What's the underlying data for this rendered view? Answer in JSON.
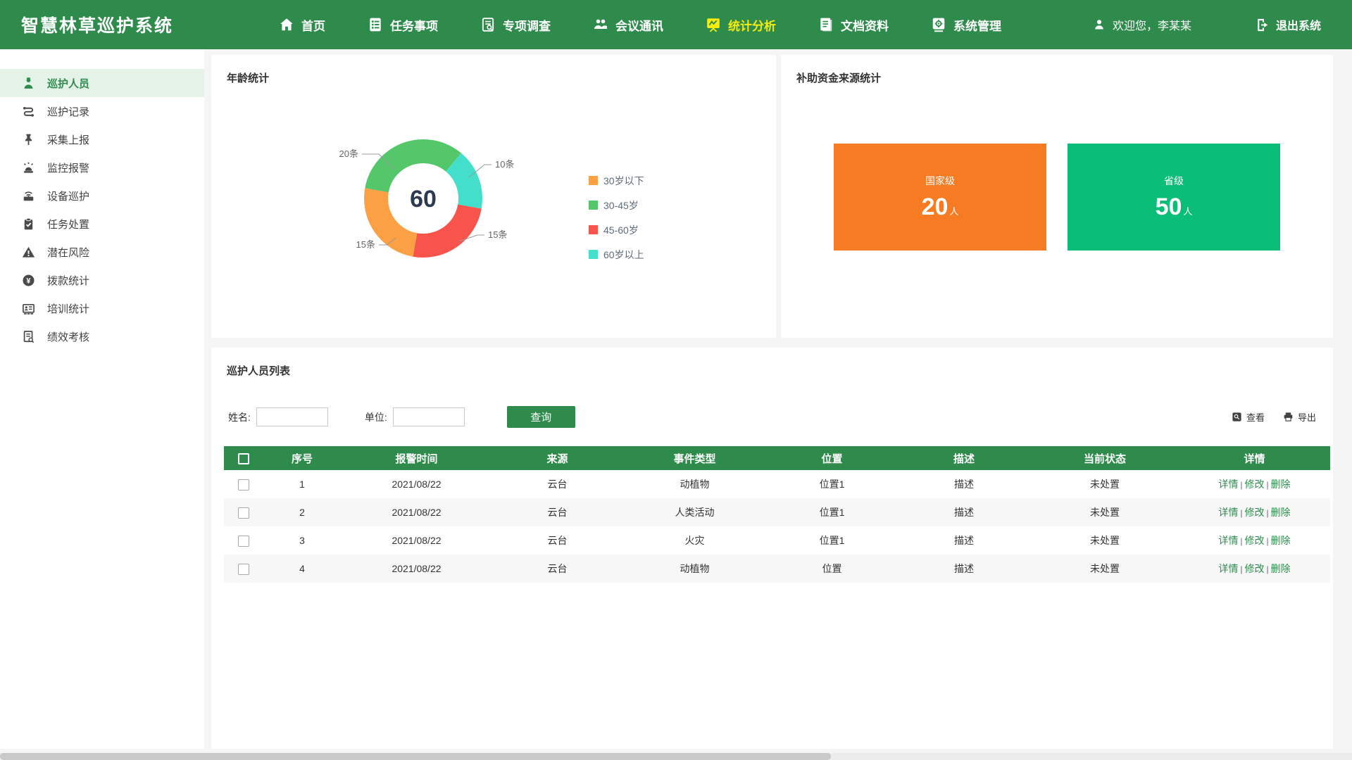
{
  "app": {
    "title": "智慧林草巡护系统"
  },
  "colors": {
    "primary_green": "#2E8B4C",
    "nav_active_yellow": "#F4EB0F",
    "sidebar_active_bg": "#E4F2E8",
    "page_bg": "#F5F5F6",
    "table_header_green": "#2E8B4C"
  },
  "navbar": {
    "items": [
      {
        "label": "首页",
        "icon": "home-icon",
        "active": false
      },
      {
        "label": "任务事项",
        "icon": "tasks-icon",
        "active": false
      },
      {
        "label": "专项调查",
        "icon": "survey-icon",
        "active": false
      },
      {
        "label": "会议通讯",
        "icon": "meeting-icon",
        "active": false
      },
      {
        "label": "统计分析",
        "icon": "stats-icon",
        "active": true
      },
      {
        "label": "文档资料",
        "icon": "docs-icon",
        "active": false
      },
      {
        "label": "系统管理",
        "icon": "settings-icon",
        "active": false
      }
    ],
    "welcome": "欢迎您，李某某",
    "logout": "退出系统"
  },
  "sidebar": {
    "items": [
      {
        "label": "巡护人员",
        "icon": "patrol-person-icon",
        "active": true
      },
      {
        "label": "巡护记录",
        "icon": "patrol-route-icon",
        "active": false
      },
      {
        "label": "采集上报",
        "icon": "pin-report-icon",
        "active": false
      },
      {
        "label": "监控报警",
        "icon": "alarm-icon",
        "active": false
      },
      {
        "label": "设备巡护",
        "icon": "device-icon",
        "active": false
      },
      {
        "label": "任务处置",
        "icon": "task-clipboard-icon",
        "active": false
      },
      {
        "label": "潜在风险",
        "icon": "risk-warning-icon",
        "active": false
      },
      {
        "label": "拨款统计",
        "icon": "funds-yen-icon",
        "active": false
      },
      {
        "label": "培训统计",
        "icon": "training-icon",
        "active": false
      },
      {
        "label": "绩效考核",
        "icon": "performance-icon",
        "active": false
      }
    ]
  },
  "age_panel": {
    "title": "年龄统计"
  },
  "funding_panel": {
    "title": "补助资金来源统计"
  },
  "chart_data": [
    {
      "type": "donut",
      "title": "年龄统计",
      "total": 60,
      "center_label": "60",
      "unit": "条",
      "series": [
        {
          "name": "30岁以下",
          "value": 15,
          "color": "#FBA045"
        },
        {
          "name": "30-45岁",
          "value": 20,
          "color": "#53C76A"
        },
        {
          "name": "45-60岁",
          "value": 15,
          "color": "#F8544B"
        },
        {
          "name": "60岁以上",
          "value": 10,
          "color": "#43DFCB"
        }
      ],
      "draw_order": [
        1,
        3,
        2,
        0
      ],
      "start_angle": 280,
      "callouts": [
        "20条",
        "10条",
        "15条",
        "15条"
      ],
      "legend_position": "right"
    },
    {
      "type": "stat-cards",
      "title": "补助资金来源统计",
      "cards": [
        {
          "label": "国家级",
          "value": "20",
          "unit": "人",
          "color": "#F67B22"
        },
        {
          "label": "省级",
          "value": "50",
          "unit": "人",
          "color": "#0BBE78"
        }
      ]
    }
  ],
  "list_panel": {
    "title": "巡护人员列表",
    "filters": {
      "name_label": "姓名:",
      "unit_label": "单位:",
      "search_button": "查询",
      "view_link": "查看",
      "export_link": "导出"
    },
    "table": {
      "headers": [
        "序号",
        "报警时间",
        "来源",
        "事件类型",
        "位置",
        "描述",
        "当前状态",
        "详情"
      ],
      "actions": [
        "详情",
        "修改",
        "删除"
      ],
      "action_separator": "|",
      "rows": [
        {
          "seq": "1",
          "time": "2021/08/22",
          "source": "云台",
          "event_type": "动植物",
          "location": "位置1",
          "desc": "描述",
          "status": "未处置"
        },
        {
          "seq": "2",
          "time": "2021/08/22",
          "source": "云台",
          "event_type": "人类活动",
          "location": "位置1",
          "desc": "描述",
          "status": "未处置"
        },
        {
          "seq": "3",
          "time": "2021/08/22",
          "source": "云台",
          "event_type": "火灾",
          "location": "位置1",
          "desc": "描述",
          "status": "未处置"
        },
        {
          "seq": "4",
          "time": "2021/08/22",
          "source": "云台",
          "event_type": "动植物",
          "location": "位置",
          "desc": "描述",
          "status": "未处置"
        }
      ]
    }
  }
}
